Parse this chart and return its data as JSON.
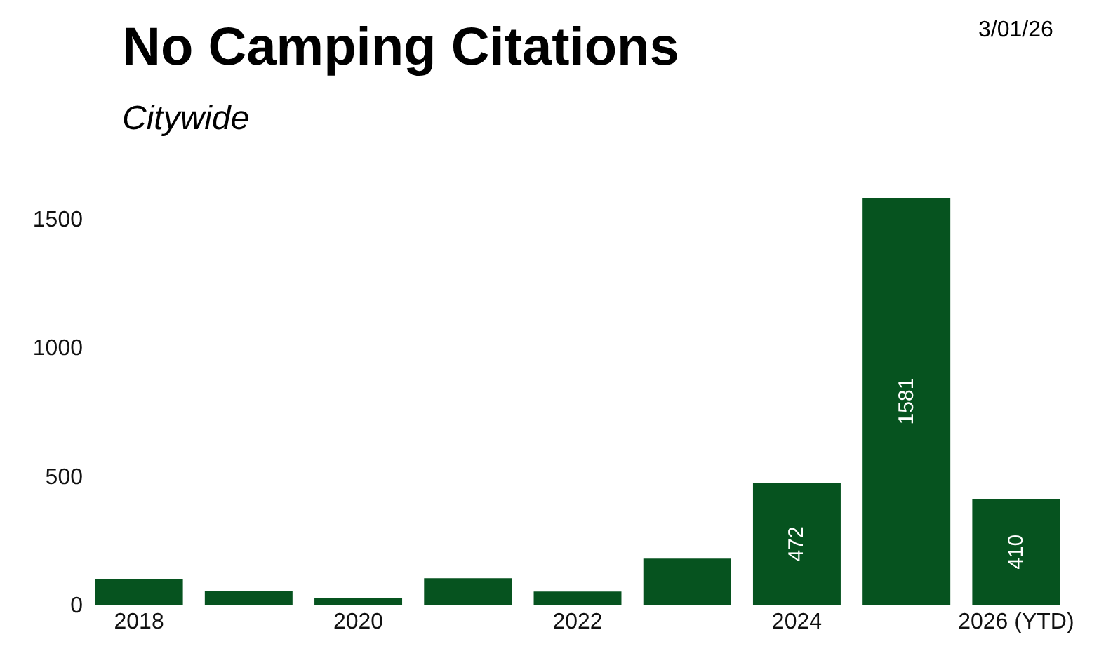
{
  "chart_data": {
    "type": "bar",
    "title": "No Camping Citations",
    "subtitle": "Citywide",
    "annotations": [
      "3/01/26"
    ],
    "categories": [
      "2018",
      null,
      "2020",
      null,
      "2022",
      null,
      "2024",
      null,
      "2026 (YTD)"
    ],
    "values": [
      99,
      53,
      27,
      103,
      51,
      179,
      472,
      1581,
      410
    ],
    "value_labels": [
      null,
      null,
      null,
      null,
      null,
      null,
      "472",
      "1581",
      "410"
    ],
    "color": "#06531f",
    "ylim": [
      0,
      1581
    ],
    "yticks": [
      0,
      500,
      1000,
      1500
    ]
  }
}
